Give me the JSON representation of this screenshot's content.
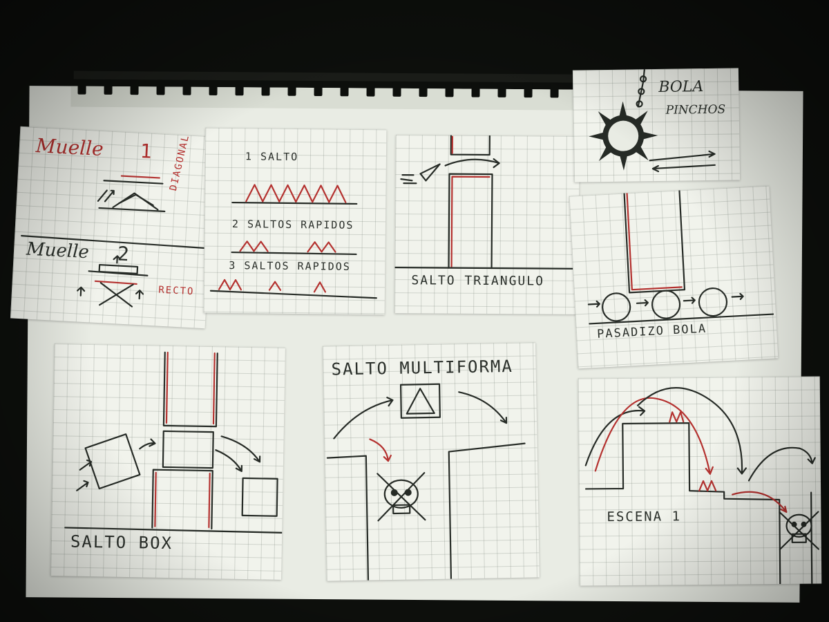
{
  "sketches": {
    "muelle": {
      "title_1": "Muelle",
      "num_1": "1",
      "side_1": "DIAGONAL",
      "title_2": "Muelle",
      "num_2": "2",
      "side_2": "RECTO"
    },
    "saltos": {
      "line_1": "1 SALTO",
      "line_2": "2 SALTOS RAPIDOS",
      "line_3": "3 SALTOS RAPIDOS"
    },
    "triangulo": {
      "caption": "SALTO TRIANGULO"
    },
    "bola_pinchos": {
      "title_1": "BOLA",
      "title_2": "PINCHOS"
    },
    "pasadizo": {
      "caption": "PASADIZO BOLA"
    },
    "box": {
      "caption": "SALTO BOX"
    },
    "multiforma": {
      "title": "SALTO MULTIFORMA"
    },
    "escena": {
      "caption": "ESCENA 1"
    }
  },
  "colors": {
    "ink": "#262b26",
    "red_ink": "#b4312f",
    "paper": "#f1f3ec"
  },
  "icons": [
    "skull-crossbones-icon",
    "spiked-ball-icon",
    "chain-icon",
    "spring-icon",
    "arrow-icon"
  ]
}
